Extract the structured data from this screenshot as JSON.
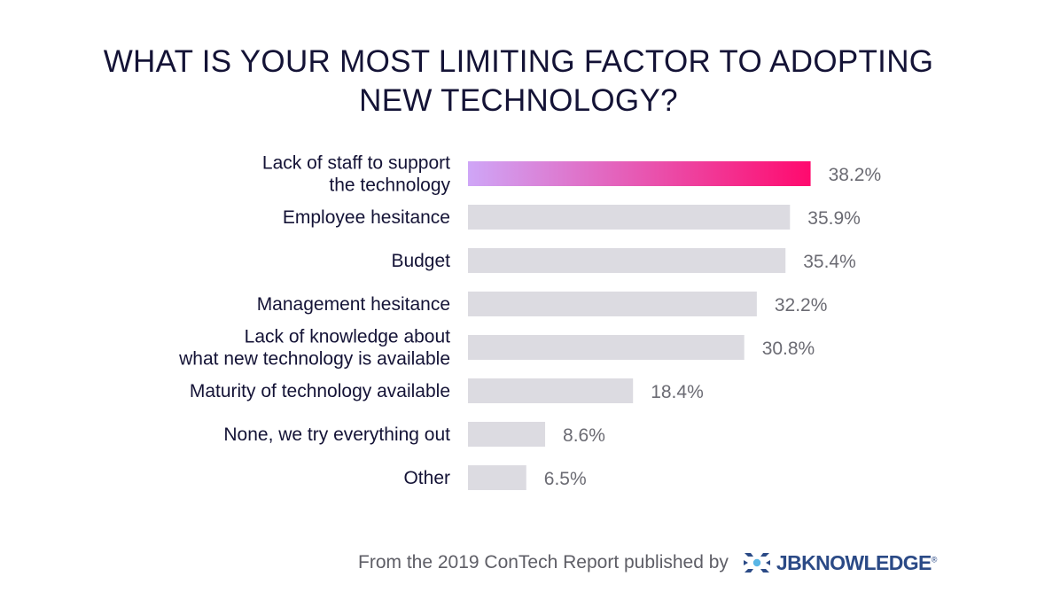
{
  "chart_data": {
    "type": "bar",
    "orientation": "horizontal",
    "title_lines": [
      "WHAT IS YOUR MOST LIMITING FACTOR TO ADOPTING",
      "NEW TECHNOLOGY?"
    ],
    "categories": [
      [
        "Lack of staff to support",
        "the technology"
      ],
      [
        "Employee hesitance"
      ],
      [
        "Budget"
      ],
      [
        "Management hesitance"
      ],
      [
        "Lack of knowledge about",
        "what new technology is available"
      ],
      [
        "Maturity of technology available"
      ],
      [
        "None, we try everything out"
      ],
      [
        "Other"
      ]
    ],
    "values": [
      38.2,
      35.9,
      35.4,
      32.2,
      30.8,
      18.4,
      8.6,
      6.5
    ],
    "value_labels": [
      "38.2%",
      "35.9%",
      "35.4%",
      "32.2%",
      "30.8%",
      "18.4%",
      "8.6%",
      "6.5%"
    ],
    "highlight_index": 0,
    "colors": {
      "bar": "#dcdbe1",
      "highlight_start": "#cfa6f7",
      "highlight_end": "#ff0a6e",
      "category_text": "#141336",
      "value_text": "#6b6b73"
    },
    "grid": false,
    "axes_visible": false
  },
  "footer": {
    "text": "From the 2019 ConTech Report published by",
    "logo_text": "JBKNOWLEDGE",
    "logo_mark": "registered",
    "logo_icon": "jb-knowledge-logo-icon"
  }
}
